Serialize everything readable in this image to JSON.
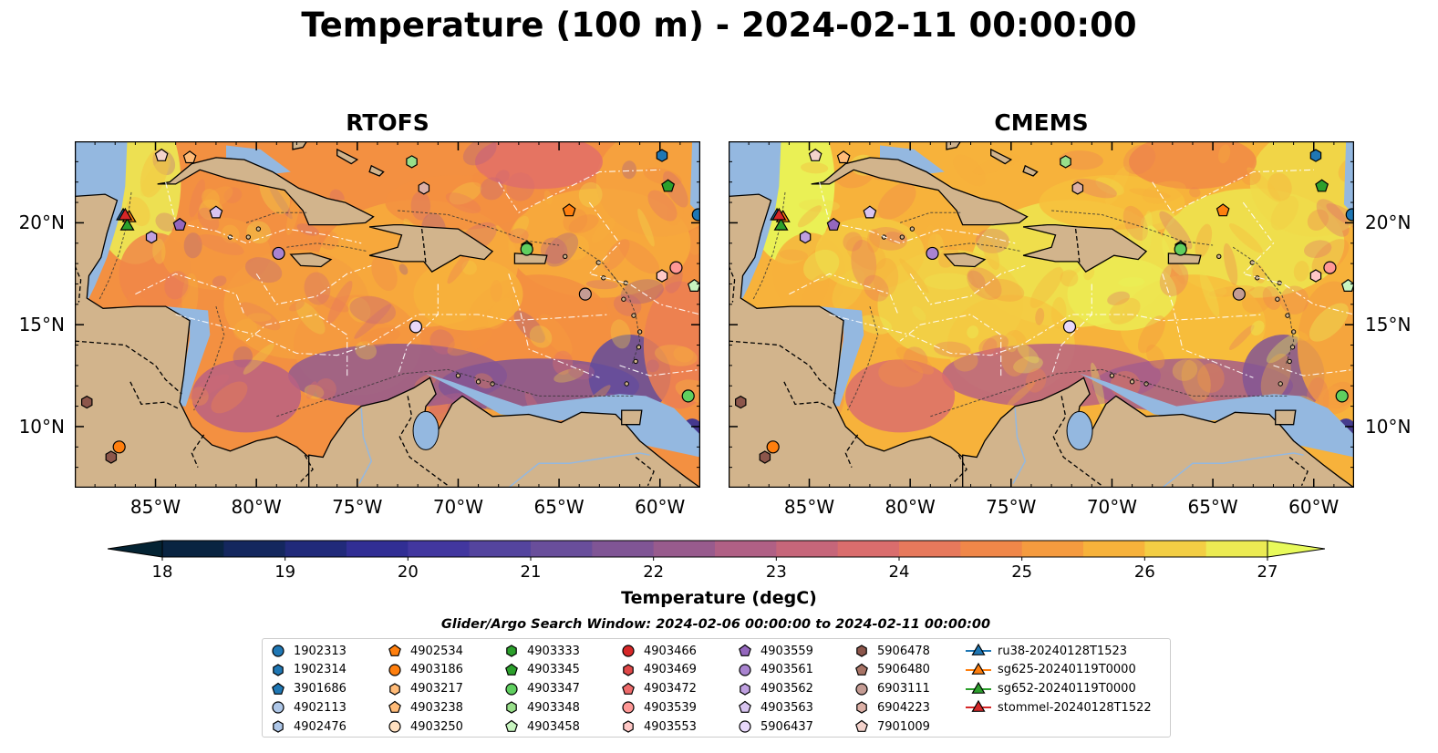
{
  "title": "Temperature (100 m) - 2024-02-11 00:00:00",
  "panels": [
    {
      "title": "RTOFS"
    },
    {
      "title": "CMEMS"
    }
  ],
  "lon_ticks": [
    "85°W",
    "80°W",
    "75°W",
    "70°W",
    "65°W",
    "60°W"
  ],
  "lat_ticks": [
    "20°N",
    "15°N",
    "10°N"
  ],
  "map_extent": {
    "lon": [
      -89,
      -58
    ],
    "lat": [
      7,
      24
    ]
  },
  "colorbar": {
    "label": "Temperature (degC)",
    "ticks": [
      "18",
      "19",
      "20",
      "21",
      "22",
      "23",
      "24",
      "25",
      "26",
      "27"
    ],
    "range": [
      18,
      27
    ],
    "extend": "both",
    "colormap": "thermal"
  },
  "search_window": "Glider/Argo Search Window: 2024-02-06 00:00:00 to 2024-02-11 00:00:00",
  "colors": {
    "land": "#d2b48c",
    "shelf": "#94b8e0",
    "coastline": "#000000"
  },
  "legend": [
    {
      "label": "1902313",
      "marker": "circle",
      "color": "#1f77b4"
    },
    {
      "label": "1902314",
      "marker": "hexagon",
      "color": "#1f77b4"
    },
    {
      "label": "3901686",
      "marker": "pentagon",
      "color": "#1f77b4"
    },
    {
      "label": "4902113",
      "marker": "circle",
      "color": "#aec7e8"
    },
    {
      "label": "4902476",
      "marker": "hexagon",
      "color": "#aec7e8"
    },
    {
      "label": "4902534",
      "marker": "pentagon",
      "color": "#ff7f0e"
    },
    {
      "label": "4903186",
      "marker": "circle",
      "color": "#ff7f0e"
    },
    {
      "label": "4903217",
      "marker": "hexagon",
      "color": "#ffbb78"
    },
    {
      "label": "4903238",
      "marker": "pentagon",
      "color": "#ffbb78"
    },
    {
      "label": "4903250",
      "marker": "circle",
      "color": "#ffe0c0"
    },
    {
      "label": "4903333",
      "marker": "hexagon",
      "color": "#2ca02c"
    },
    {
      "label": "4903345",
      "marker": "pentagon",
      "color": "#2ca02c"
    },
    {
      "label": "4903347",
      "marker": "circle",
      "color": "#5fcf5f"
    },
    {
      "label": "4903348",
      "marker": "hexagon",
      "color": "#98df8a"
    },
    {
      "label": "4903458",
      "marker": "pentagon",
      "color": "#c8f5c0"
    },
    {
      "label": "4903466",
      "marker": "circle",
      "color": "#d62728"
    },
    {
      "label": "4903469",
      "marker": "hexagon",
      "color": "#e04848"
    },
    {
      "label": "4903472",
      "marker": "pentagon",
      "color": "#ee6b6b"
    },
    {
      "label": "4903539",
      "marker": "circle",
      "color": "#ff9896"
    },
    {
      "label": "4903553",
      "marker": "hexagon",
      "color": "#ffc8c6"
    },
    {
      "label": "4903559",
      "marker": "pentagon",
      "color": "#9467bd"
    },
    {
      "label": "4903561",
      "marker": "circle",
      "color": "#a984d0"
    },
    {
      "label": "4903562",
      "marker": "hexagon",
      "color": "#bfa0e0"
    },
    {
      "label": "4903563",
      "marker": "pentagon",
      "color": "#d8c4f0"
    },
    {
      "label": "5906437",
      "marker": "circle",
      "color": "#e8d8fb"
    },
    {
      "label": "5906478",
      "marker": "hexagon",
      "color": "#8c564b"
    },
    {
      "label": "5906480",
      "marker": "pentagon",
      "color": "#a87466"
    },
    {
      "label": "6903111",
      "marker": "circle",
      "color": "#c49c94"
    },
    {
      "label": "6904223",
      "marker": "hexagon",
      "color": "#dcb0a6"
    },
    {
      "label": "7901009",
      "marker": "pentagon",
      "color": "#f3d2cb"
    },
    {
      "label": "ru38-20240128T1523",
      "marker": "triangle-line",
      "color": "#1f77b4"
    },
    {
      "label": "sg625-20240119T0000",
      "marker": "triangle-line",
      "color": "#ff7f0e"
    },
    {
      "label": "sg652-20240119T0000",
      "marker": "triangle-line",
      "color": "#2ca02c"
    },
    {
      "label": "stommel-20240128T1522",
      "marker": "triangle-line",
      "color": "#d62728"
    }
  ],
  "floats": [
    {
      "label": "1902313",
      "lon": -58.1,
      "lat": 20.4
    },
    {
      "label": "1902314",
      "lon": -59.9,
      "lat": 23.3
    },
    {
      "label": "4903345",
      "lon": -59.6,
      "lat": 21.8
    },
    {
      "label": "4902534",
      "lon": -64.5,
      "lat": 20.6
    },
    {
      "label": "4903333",
      "lon": -66.6,
      "lat": 18.8
    },
    {
      "label": "4903347",
      "lon": -66.6,
      "lat": 18.7
    },
    {
      "label": "4903348",
      "lon": -72.3,
      "lat": 23.0
    },
    {
      "label": "6904223",
      "lon": -71.7,
      "lat": 21.7
    },
    {
      "label": "4903458",
      "lon": -58.3,
      "lat": 16.9
    },
    {
      "label": "4903553",
      "lon": -59.9,
      "lat": 17.4
    },
    {
      "label": "4903539",
      "lon": -59.2,
      "lat": 17.8
    },
    {
      "label": "6903111",
      "lon": -63.7,
      "lat": 16.5
    },
    {
      "label": "5906437",
      "lon": -72.1,
      "lat": 14.9
    },
    {
      "label": "4903561",
      "lon": -78.9,
      "lat": 18.5
    },
    {
      "label": "4903563",
      "lon": -82.0,
      "lat": 20.5
    },
    {
      "label": "4903559",
      "lon": -83.8,
      "lat": 19.9
    },
    {
      "label": "4903562",
      "lon": -85.2,
      "lat": 19.3
    },
    {
      "label": "7901009",
      "lon": -84.7,
      "lat": 23.3
    },
    {
      "label": "4903238",
      "lon": -83.3,
      "lat": 23.2
    },
    {
      "label": "4903347",
      "lon": -58.6,
      "lat": 11.5
    },
    {
      "label": "5906478",
      "lon": -88.4,
      "lat": 11.2
    },
    {
      "label": "4903186",
      "lon": -86.8,
      "lat": 9.0
    },
    {
      "label": "5906478",
      "lon": -87.2,
      "lat": 8.5
    }
  ],
  "gliders": [
    {
      "label": "ru38-20240128T1523",
      "lon": -86.6,
      "lat": 20.4
    },
    {
      "label": "sg625-20240119T0000",
      "lon": -86.3,
      "lat": 20.3
    },
    {
      "label": "sg652-20240119T0000",
      "lon": -86.4,
      "lat": 19.9
    },
    {
      "label": "stommel-20240128T1522",
      "lon": -86.5,
      "lat": 20.4
    }
  ]
}
